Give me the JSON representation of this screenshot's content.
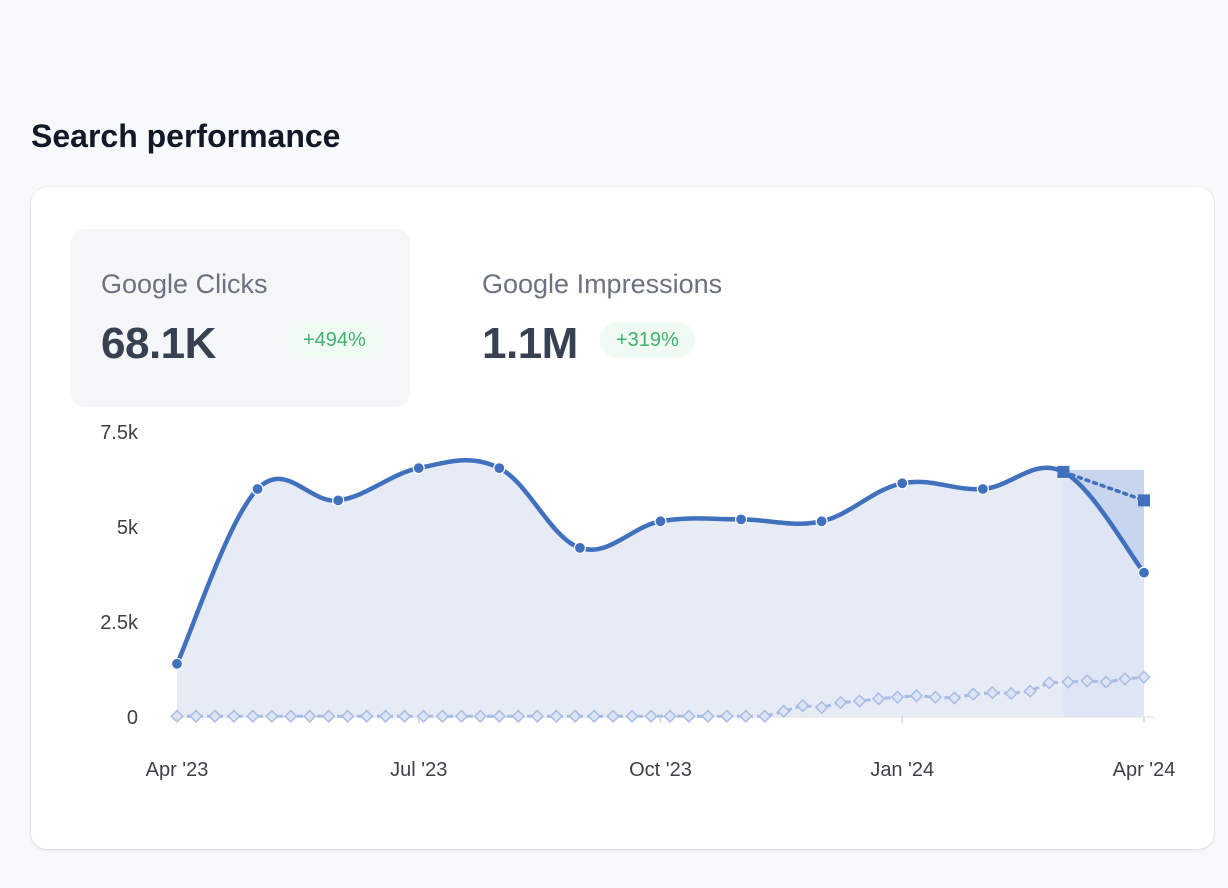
{
  "section": {
    "title": "Search performance"
  },
  "metrics": [
    {
      "label": "Google Clicks",
      "value": "68.1K",
      "change": "+494%",
      "active": true
    },
    {
      "label": "Google Impressions",
      "value": "1.1M",
      "change": "+319%",
      "active": false
    }
  ],
  "colors": {
    "line": "#4170bd",
    "area": "#e2e8f4",
    "highlight": "#c7d5ee",
    "secondary": "#a9bde4",
    "badge_text": "#3fb26b",
    "badge_bg": "#eefaf2"
  },
  "chart_data": {
    "type": "line",
    "y_ticks": [
      "7.5k",
      "5k",
      "2.5k",
      "0"
    ],
    "y_tick_values": [
      7500,
      5000,
      2500,
      0
    ],
    "x_ticks": [
      "Apr '23",
      "Jul '23",
      "Oct '23",
      "Jan '24",
      "Apr '24"
    ],
    "ylim": [
      0,
      7500
    ],
    "series": [
      {
        "name": "Google Clicks",
        "style": "solid",
        "values": [
          1400,
          6000,
          5700,
          6550,
          6550,
          4450,
          5150,
          5200,
          5150,
          6150,
          6000,
          6450,
          3800
        ],
        "projected_last": 5700
      },
      {
        "name": "Google Impressions",
        "style": "dashed-diamond",
        "values": [
          20,
          20,
          20,
          20,
          20,
          20,
          20,
          20,
          20,
          20,
          20,
          20,
          20,
          20,
          20,
          20,
          20,
          20,
          20,
          20,
          20,
          20,
          20,
          20,
          20,
          20,
          20,
          20,
          20,
          20,
          20,
          20,
          150,
          300,
          250,
          380,
          420,
          480,
          520,
          560,
          520,
          500,
          600,
          640,
          620,
          680,
          900,
          920,
          950,
          920,
          1000,
          1050
        ]
      }
    ],
    "highlight_range": "last segment (partial period)"
  }
}
